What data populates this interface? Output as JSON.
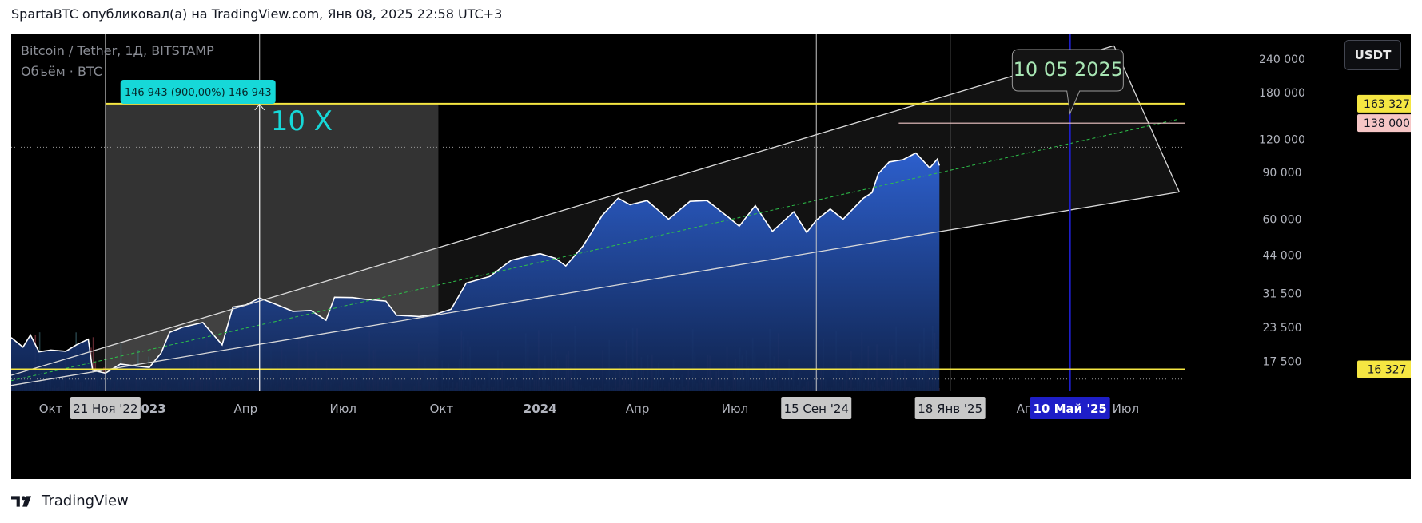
{
  "header": {
    "publisher_line": "SpartaBTC опубликовал(а) на TradingView.com, Янв 08, 2025 22:58 UTC+3"
  },
  "symbol": {
    "line1": "Bitcoin / Tether, 1Д, BITSTAMP",
    "line2": "Объём · BTC"
  },
  "currency_button": "USDT",
  "footer": {
    "brand": "TradingView"
  },
  "colors": {
    "background": "#000000",
    "area_fill": "#2962ff",
    "price_line": "#ffffff",
    "level_line": "#f5e642",
    "target_vline": "#1e1ec8",
    "measure_label": "#16d8d8"
  },
  "annotations": {
    "measure_label": "146 943 (900,00%) 146 943",
    "ten_x": "10 X",
    "callout": "10 05 2025"
  },
  "chart_data": {
    "type": "area",
    "title": "",
    "xlabel": "",
    "ylabel": "",
    "y_scale": "log",
    "ylim": [
      13500,
      300000
    ],
    "xlim": [
      "2022-08-25",
      "2025-08-25"
    ],
    "x_tick_labels": [
      {
        "label": "Окт",
        "x": "2022-10-01"
      },
      {
        "label": "2023",
        "x": "2023-01-01"
      },
      {
        "label": "Апр",
        "x": "2023-04-01"
      },
      {
        "label": "Июл",
        "x": "2023-07-01"
      },
      {
        "label": "Окт",
        "x": "2023-10-01"
      },
      {
        "label": "2024",
        "x": "2024-01-01"
      },
      {
        "label": "Апр",
        "x": "2024-04-01"
      },
      {
        "label": "Июл",
        "x": "2024-07-01"
      },
      {
        "label": "Апр",
        "x": "2025-04-01"
      },
      {
        "label": "Июл",
        "x": "2025-07-01"
      }
    ],
    "x_highlight_labels": [
      {
        "label": "21 Ноя '22",
        "x": "2022-11-21"
      },
      {
        "label": "15 Сен '24",
        "x": "2024-09-15"
      },
      {
        "label": "18 Янв '25",
        "x": "2025-01-18"
      }
    ],
    "x_target_label": {
      "label": "10 Май '25",
      "x": "2025-05-10"
    },
    "y_tick_labels": [
      {
        "label": "240 000",
        "value": 240000
      },
      {
        "label": "180 000",
        "value": 180000
      },
      {
        "label": "120 000",
        "value": 120000
      },
      {
        "label": "90 000",
        "value": 90000
      },
      {
        "label": "60 000",
        "value": 60000
      },
      {
        "label": "44 000",
        "value": 44000
      },
      {
        "label": "31 500",
        "value": 31500
      },
      {
        "label": "23 500",
        "value": 23500
      },
      {
        "label": "17 500",
        "value": 17500
      }
    ],
    "price_levels": [
      {
        "label": "163 327",
        "value": 163327,
        "style": "yellow"
      },
      {
        "label": "138 000",
        "value": 138000,
        "style": "pink"
      },
      {
        "label": "16 327",
        "value": 16327,
        "style": "yellow"
      }
    ],
    "series": [
      {
        "name": "",
        "points": [
          [
            "2022-08-25",
            21500
          ],
          [
            "2022-09-05",
            19800
          ],
          [
            "2022-09-12",
            22000
          ],
          [
            "2022-09-20",
            19000
          ],
          [
            "2022-10-01",
            19300
          ],
          [
            "2022-10-15",
            19100
          ],
          [
            "2022-10-25",
            20200
          ],
          [
            "2022-11-05",
            21200
          ],
          [
            "2022-11-09",
            16200
          ],
          [
            "2022-11-21",
            15800
          ],
          [
            "2022-12-05",
            17100
          ],
          [
            "2022-12-20",
            16800
          ],
          [
            "2023-01-01",
            16600
          ],
          [
            "2023-01-12",
            18800
          ],
          [
            "2023-01-20",
            22500
          ],
          [
            "2023-02-01",
            23500
          ],
          [
            "2023-02-20",
            24500
          ],
          [
            "2023-03-10",
            20200
          ],
          [
            "2023-03-20",
            28000
          ],
          [
            "2023-04-01",
            28500
          ],
          [
            "2023-04-14",
            30300
          ],
          [
            "2023-05-01",
            28500
          ],
          [
            "2023-05-15",
            27000
          ],
          [
            "2023-06-01",
            27200
          ],
          [
            "2023-06-15",
            25000
          ],
          [
            "2023-06-23",
            30500
          ],
          [
            "2023-07-10",
            30400
          ],
          [
            "2023-07-20",
            30000
          ],
          [
            "2023-08-10",
            29500
          ],
          [
            "2023-08-20",
            26100
          ],
          [
            "2023-09-10",
            25800
          ],
          [
            "2023-09-25",
            26300
          ],
          [
            "2023-10-10",
            27500
          ],
          [
            "2023-10-24",
            34500
          ],
          [
            "2023-11-15",
            36500
          ],
          [
            "2023-12-05",
            42000
          ],
          [
            "2023-12-20",
            43500
          ],
          [
            "2024-01-01",
            44500
          ],
          [
            "2024-01-15",
            42800
          ],
          [
            "2024-01-25",
            40000
          ],
          [
            "2024-02-10",
            47500
          ],
          [
            "2024-02-28",
            62000
          ],
          [
            "2024-03-14",
            72000
          ],
          [
            "2024-03-25",
            68000
          ],
          [
            "2024-04-10",
            70500
          ],
          [
            "2024-04-30",
            60000
          ],
          [
            "2024-05-20",
            70000
          ],
          [
            "2024-06-05",
            70500
          ],
          [
            "2024-06-25",
            61000
          ],
          [
            "2024-07-05",
            56500
          ],
          [
            "2024-07-20",
            67500
          ],
          [
            "2024-08-05",
            54000
          ],
          [
            "2024-08-25",
            64000
          ],
          [
            "2024-09-06",
            53500
          ],
          [
            "2024-09-15",
            59500
          ],
          [
            "2024-09-28",
            65500
          ],
          [
            "2024-10-10",
            60000
          ],
          [
            "2024-10-29",
            72000
          ],
          [
            "2024-11-06",
            75500
          ],
          [
            "2024-11-12",
            89000
          ],
          [
            "2024-11-22",
            98500
          ],
          [
            "2024-12-05",
            100500
          ],
          [
            "2024-12-17",
            106500
          ],
          [
            "2024-12-30",
            93500
          ],
          [
            "2025-01-06",
            101000
          ],
          [
            "2025-01-08",
            95500
          ]
        ]
      }
    ],
    "annotations": [
      {
        "type": "text",
        "text": "146 943 (900,00%) 146 943"
      },
      {
        "type": "text",
        "text": "10 X"
      },
      {
        "type": "callout",
        "text": "10 05 2025"
      }
    ]
  }
}
